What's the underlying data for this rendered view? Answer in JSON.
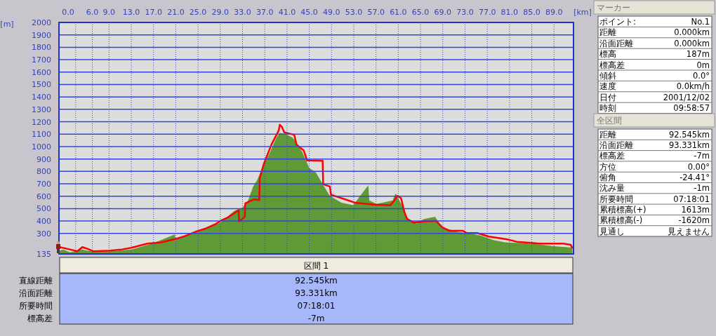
{
  "chart_data": [
    {
      "type": "area",
      "xlabel": "[km]",
      "ylabel": "[m]",
      "xlim": [
        0,
        92.5
      ],
      "ylim": [
        135,
        2000
      ],
      "xticks": [
        {
          "value": 0,
          "label": "0.0"
        },
        {
          "value": 3,
          "label": null
        },
        {
          "value": 6,
          "label": "6.0"
        },
        {
          "value": 9,
          "label": "9.0"
        },
        {
          "value": 13,
          "label": "13.0"
        },
        {
          "value": 17,
          "label": "17.0"
        },
        {
          "value": 21,
          "label": "21.0"
        },
        {
          "value": 25,
          "label": "25.0"
        },
        {
          "value": 29,
          "label": "29.0"
        },
        {
          "value": 33,
          "label": "33.0"
        },
        {
          "value": 37,
          "label": "37.0"
        },
        {
          "value": 41,
          "label": "41.0"
        },
        {
          "value": 45,
          "label": "45.0"
        },
        {
          "value": 49,
          "label": "49.0"
        },
        {
          "value": 53,
          "label": "53.0"
        },
        {
          "value": 57,
          "label": "57.0"
        },
        {
          "value": 61,
          "label": "61.0"
        },
        {
          "value": 65,
          "label": "65.0"
        },
        {
          "value": 69,
          "label": "69.0"
        },
        {
          "value": 73,
          "label": "73.0"
        },
        {
          "value": 77,
          "label": "77.0"
        },
        {
          "value": 81,
          "label": "81.0"
        },
        {
          "value": 85,
          "label": "85.0"
        },
        {
          "value": 89,
          "label": "89.0"
        }
      ],
      "yticks": [
        135,
        300,
        400,
        500,
        600,
        700,
        800,
        900,
        1000,
        1100,
        1200,
        1300,
        1400,
        1500,
        1600,
        1700,
        1800,
        1900,
        2000
      ],
      "grid": true,
      "series": [
        {
          "type": "area",
          "color": "#5e9a36",
          "x": [
            0.1,
            0.8,
            2.0,
            4.1,
            6.2,
            9.2,
            13.0,
            16.8,
            20.8,
            21.0,
            24.8,
            29.0,
            31.5,
            33.0,
            34.0,
            34.9,
            35.7,
            36.5,
            37.8,
            39.1,
            39.7,
            40.8,
            42.0,
            43.7,
            45.0,
            46.2,
            47.4,
            48.7,
            50.8,
            52.9,
            55.6,
            55.8,
            57.1,
            60.0,
            60.5,
            62.1,
            62.6,
            64.3,
            65.5,
            67.6,
            68.9,
            71.8,
            73.5,
            76.0,
            78.1,
            80.2,
            84.4,
            86.5,
            88.6,
            92.3
          ],
          "values": [
            162,
            171,
            148,
            171,
            152,
            156,
            171,
            218,
            292,
            250,
            312,
            387,
            481,
            509,
            566,
            678,
            735,
            828,
            941,
            1072,
            1110,
            1100,
            1072,
            960,
            828,
            791,
            697,
            603,
            547,
            528,
            688,
            566,
            538,
            566,
            622,
            491,
            425,
            378,
            415,
            434,
            350,
            312,
            303,
            280,
            246,
            228,
            218,
            212,
            199,
            186
          ]
        },
        {
          "type": "line",
          "color": "#ff0000",
          "x": [
            0.1,
            2.0,
            3.3,
            4.2,
            5.2,
            6.2,
            9.2,
            11.3,
            13.0,
            15.9,
            18.4,
            21.0,
            22.7,
            24.8,
            26.4,
            28.1,
            29.2,
            30.4,
            32.3,
            32.4,
            33.4,
            33.5,
            35.1,
            36.0,
            36.1,
            36.8,
            38.2,
            39.5,
            39.7,
            40.1,
            40.5,
            42.3,
            42.7,
            44.0,
            44.6,
            47.4,
            47.5,
            48.7,
            48.9,
            50.8,
            53.3,
            56.7,
            59.6,
            60.3,
            60.8,
            61.5,
            62.1,
            62.6,
            63.8,
            65.5,
            67.8,
            68.9,
            70.1,
            72.6,
            73.3,
            75.2,
            77.3,
            80.6,
            82.3,
            86.5,
            90.7,
            92.0,
            92.3
          ],
          "values": [
            190,
            171,
            156,
            190,
            175,
            156,
            162,
            171,
            184,
            218,
            228,
            256,
            280,
            318,
            340,
            374,
            406,
            430,
            487,
            397,
            434,
            543,
            575,
            569,
            744,
            857,
            1016,
            1129,
            1176,
            1157,
            1114,
            1095,
            1016,
            969,
            888,
            885,
            697,
            678,
            612,
            584,
            547,
            532,
            528,
            566,
            603,
            584,
            472,
            415,
            387,
            397,
            400,
            350,
            322,
            322,
            303,
            303,
            275,
            252,
            233,
            218,
            218,
            209,
            181
          ]
        }
      ]
    },
    {
      "type": "other",
      "title": "マーカー",
      "annotations": [
        "ポイント:",
        "No.1",
        "距離",
        "0.000km",
        "沿面距離",
        "0.000km",
        "標高",
        "187m",
        "標高差",
        "0m",
        "傾斜",
        "0.0°",
        "速度",
        "0.0km/h",
        "日付",
        "2001/12/02",
        "時刻",
        "09:58:57"
      ]
    },
    {
      "type": "other",
      "title": "全区間",
      "annotations": [
        "距離",
        "92.545km",
        "沿面距離",
        "93.331km",
        "標高差",
        "-7m",
        "方位",
        "0.00°",
        "俯角",
        "-24.41°",
        "沈み量",
        "-1m",
        "所要時間",
        "07:18:01",
        "累積標高(+)",
        "1613m",
        "累積標高(-)",
        "-1620m",
        "見通し",
        "見えません"
      ]
    },
    {
      "type": "other",
      "title": "区間 1",
      "annotations": [
        "直線距離",
        "92.545km",
        "沿面距離",
        "93.331km",
        "所要時間",
        "07:18:01",
        "標高差",
        "-7m"
      ]
    }
  ]
}
